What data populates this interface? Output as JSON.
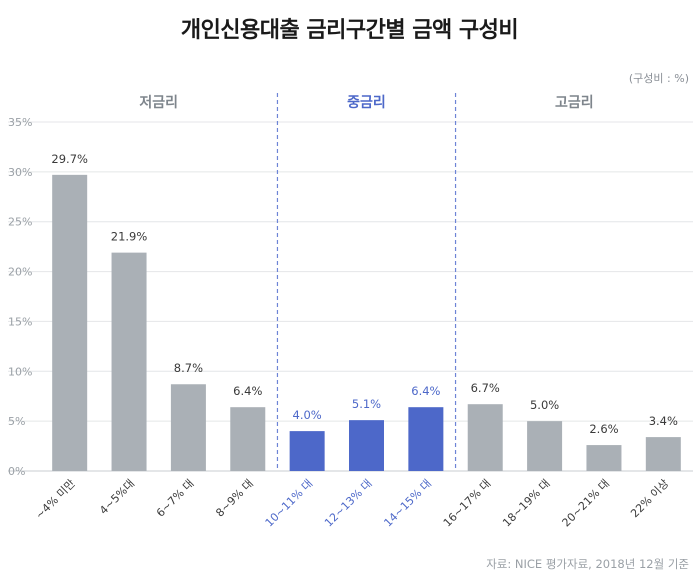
{
  "title": "개인신용대출 금리구간별 금액 구성비",
  "unit_note": "(구성비 : %)",
  "source": "자료: NICE 평가자료, 2018년 12월 기준",
  "colors": {
    "gray_bar": "#aab0b6",
    "blue_bar": "#4d68c9",
    "gray_text": "#3a3a3a",
    "blue_text": "#4d68c9",
    "group_gray": "#7e858c",
    "group_blue": "#4d68c9",
    "divider": "#6d84d6",
    "grid": "#e4e6e8",
    "axis": "#c9cdd1"
  },
  "chart_data": {
    "type": "bar",
    "title": "개인신용대출 금리구간별 금액 구성비",
    "ylabel": "",
    "xlabel": "",
    "ylim": [
      0,
      35
    ],
    "yticks": [
      "0%",
      "5%",
      "10%",
      "15%",
      "20%",
      "25%",
      "30%",
      "35%"
    ],
    "grid": true,
    "categories": [
      "~4% 미만",
      "4~5%대",
      "6~7% 대",
      "8~9% 대",
      "10~11% 대",
      "12~13% 대",
      "14~15% 대",
      "16~17% 대",
      "18~19% 대",
      "20~21% 대",
      "22% 이상"
    ],
    "values": [
      29.7,
      21.9,
      8.7,
      6.4,
      4.0,
      5.1,
      6.4,
      6.7,
      5.0,
      2.6,
      3.4
    ],
    "value_labels": [
      "29.7%",
      "21.9%",
      "8.7%",
      "6.4%",
      "4.0%",
      "5.1%",
      "6.4%",
      "6.7%",
      "5.0%",
      "2.6%",
      "3.4%"
    ],
    "groups": [
      {
        "name": "저금리",
        "start": 0,
        "end": 3,
        "highlight": false
      },
      {
        "name": "중금리",
        "start": 4,
        "end": 6,
        "highlight": true
      },
      {
        "name": "고금리",
        "start": 7,
        "end": 10,
        "highlight": false
      }
    ]
  }
}
